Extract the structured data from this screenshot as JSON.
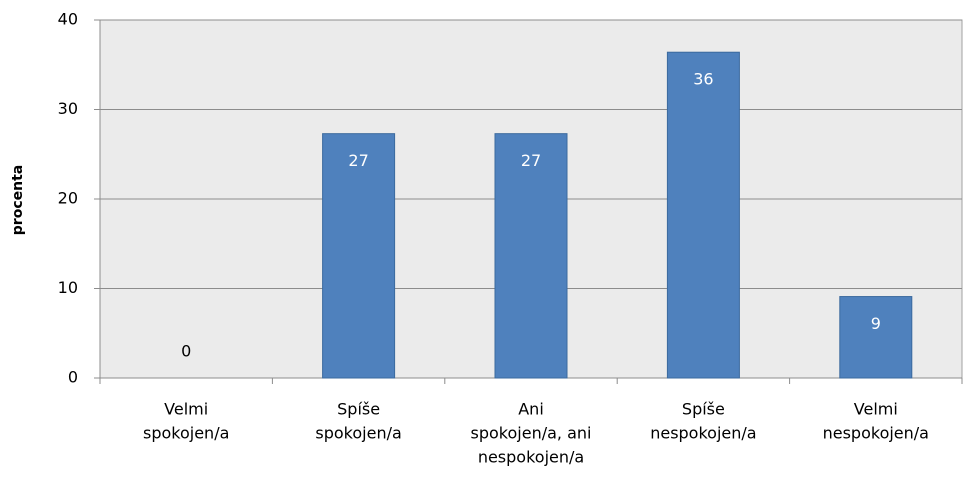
{
  "chart_data": {
    "type": "bar",
    "y_label": "procenta",
    "categories": [
      [
        "Velmi",
        "spokojen/a"
      ],
      [
        "Spíše",
        "spokojen/a"
      ],
      [
        "Ani",
        "spokojen/a, ani",
        "nespokojen/a"
      ],
      [
        "Spíše",
        "nespokojen/a"
      ],
      [
        "Velmi",
        "nespokojen/a"
      ]
    ],
    "values": [
      0,
      27.3,
      27.3,
      36.4,
      9.1
    ],
    "value_labels": [
      "0",
      "27",
      "27",
      "36",
      "9"
    ],
    "color": "#4f81bd",
    "ylim": [
      0,
      40
    ],
    "yticks": [
      0,
      10,
      20,
      30,
      40
    ],
    "grid": true
  }
}
